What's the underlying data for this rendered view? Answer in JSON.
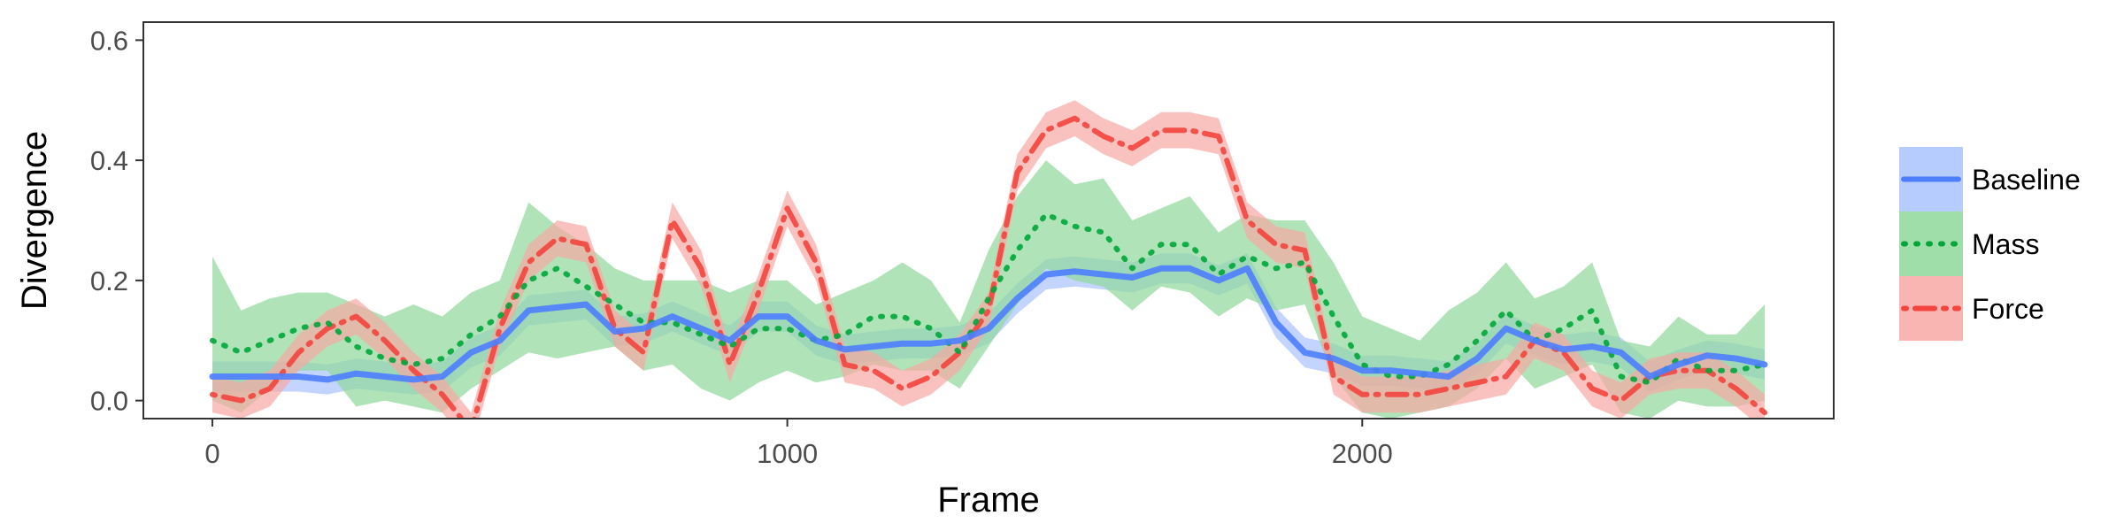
{
  "chart_data": {
    "type": "line",
    "xlabel": "Frame",
    "ylabel": "Divergence",
    "xlim": [
      -120,
      2820
    ],
    "ylim": [
      -0.03,
      0.63
    ],
    "x_ticks": [
      0,
      1000,
      2000
    ],
    "x_tick_labels": [
      "0",
      "1000",
      "2000"
    ],
    "y_ticks": [
      0.0,
      0.2,
      0.4,
      0.6
    ],
    "y_tick_labels": [
      "0.0",
      "0.2",
      "0.4",
      "0.6"
    ],
    "grid": false,
    "legend_position": "right",
    "series": [
      {
        "name": "Baseline",
        "color": "#4c7eff",
        "band_color": "#a9c3ff",
        "line_style": "solid",
        "x": [
          0,
          50,
          100,
          150,
          200,
          250,
          300,
          350,
          400,
          450,
          500,
          550,
          600,
          650,
          700,
          750,
          800,
          850,
          900,
          950,
          1000,
          1050,
          1100,
          1150,
          1200,
          1250,
          1300,
          1350,
          1400,
          1450,
          1500,
          1550,
          1600,
          1650,
          1700,
          1750,
          1800,
          1850,
          1900,
          1950,
          2000,
          2050,
          2100,
          2150,
          2200,
          2250,
          2300,
          2350,
          2400,
          2450,
          2500,
          2550,
          2600,
          2650,
          2700
        ],
        "values": [
          0.04,
          0.04,
          0.04,
          0.04,
          0.035,
          0.045,
          0.04,
          0.035,
          0.04,
          0.08,
          0.1,
          0.15,
          0.155,
          0.16,
          0.115,
          0.12,
          0.14,
          0.12,
          0.1,
          0.14,
          0.14,
          0.1,
          0.085,
          0.09,
          0.095,
          0.095,
          0.1,
          0.12,
          0.17,
          0.21,
          0.215,
          0.21,
          0.205,
          0.22,
          0.22,
          0.2,
          0.22,
          0.13,
          0.08,
          0.07,
          0.05,
          0.05,
          0.045,
          0.04,
          0.07,
          0.12,
          0.1,
          0.085,
          0.09,
          0.08,
          0.04,
          0.06,
          0.075,
          0.07,
          0.06
        ],
        "lower": [
          0.015,
          0.015,
          0.015,
          0.015,
          0.01,
          0.02,
          0.015,
          0.01,
          0.015,
          0.055,
          0.075,
          0.125,
          0.13,
          0.135,
          0.09,
          0.095,
          0.115,
          0.095,
          0.075,
          0.115,
          0.115,
          0.075,
          0.06,
          0.065,
          0.07,
          0.07,
          0.075,
          0.095,
          0.145,
          0.185,
          0.19,
          0.185,
          0.18,
          0.195,
          0.195,
          0.175,
          0.195,
          0.105,
          0.055,
          0.045,
          0.025,
          0.025,
          0.02,
          0.015,
          0.045,
          0.095,
          0.075,
          0.06,
          0.065,
          0.055,
          0.015,
          0.035,
          0.05,
          0.045,
          0.035
        ],
        "upper": [
          0.065,
          0.065,
          0.065,
          0.065,
          0.06,
          0.07,
          0.065,
          0.06,
          0.065,
          0.105,
          0.125,
          0.175,
          0.18,
          0.185,
          0.14,
          0.145,
          0.165,
          0.145,
          0.125,
          0.165,
          0.165,
          0.125,
          0.11,
          0.115,
          0.12,
          0.12,
          0.125,
          0.145,
          0.195,
          0.235,
          0.24,
          0.235,
          0.23,
          0.245,
          0.245,
          0.225,
          0.245,
          0.155,
          0.105,
          0.095,
          0.075,
          0.075,
          0.07,
          0.065,
          0.095,
          0.145,
          0.125,
          0.11,
          0.115,
          0.105,
          0.065,
          0.085,
          0.1,
          0.095,
          0.085
        ]
      },
      {
        "name": "Mass",
        "color": "#00a63a",
        "band_color": "#8fd89a",
        "line_style": "dotted",
        "x": [
          0,
          50,
          100,
          150,
          200,
          250,
          300,
          350,
          400,
          450,
          500,
          550,
          600,
          650,
          700,
          750,
          800,
          850,
          900,
          950,
          1000,
          1050,
          1100,
          1150,
          1200,
          1250,
          1300,
          1350,
          1400,
          1450,
          1500,
          1550,
          1600,
          1650,
          1700,
          1750,
          1800,
          1850,
          1900,
          1950,
          2000,
          2050,
          2100,
          2150,
          2200,
          2250,
          2300,
          2350,
          2400,
          2450,
          2500,
          2550,
          2600,
          2650,
          2700
        ],
        "values": [
          0.1,
          0.08,
          0.1,
          0.12,
          0.13,
          0.09,
          0.07,
          0.06,
          0.07,
          0.11,
          0.14,
          0.2,
          0.22,
          0.19,
          0.16,
          0.13,
          0.13,
          0.11,
          0.09,
          0.12,
          0.12,
          0.1,
          0.11,
          0.14,
          0.14,
          0.12,
          0.08,
          0.17,
          0.25,
          0.31,
          0.29,
          0.28,
          0.22,
          0.26,
          0.26,
          0.21,
          0.24,
          0.22,
          0.23,
          0.14,
          0.06,
          0.04,
          0.04,
          0.06,
          0.1,
          0.15,
          0.1,
          0.12,
          0.15,
          0.04,
          0.03,
          0.07,
          0.05,
          0.05,
          0.06
        ],
        "lower": [
          0.0,
          -0.02,
          0.02,
          0.05,
          0.05,
          -0.01,
          0.0,
          -0.01,
          -0.02,
          0.02,
          0.05,
          0.08,
          0.07,
          0.08,
          0.09,
          0.05,
          0.06,
          0.02,
          0.0,
          0.03,
          0.05,
          0.03,
          0.04,
          0.06,
          0.05,
          0.05,
          0.02,
          0.09,
          0.16,
          0.22,
          0.2,
          0.19,
          0.15,
          0.19,
          0.18,
          0.14,
          0.17,
          0.15,
          0.16,
          0.04,
          -0.02,
          -0.03,
          -0.02,
          -0.01,
          0.02,
          0.07,
          0.02,
          0.04,
          0.06,
          -0.02,
          -0.03,
          0.0,
          -0.01,
          -0.01,
          0.0
        ],
        "upper": [
          0.24,
          0.15,
          0.17,
          0.18,
          0.18,
          0.16,
          0.14,
          0.16,
          0.14,
          0.18,
          0.2,
          0.33,
          0.29,
          0.26,
          0.22,
          0.2,
          0.2,
          0.2,
          0.18,
          0.2,
          0.2,
          0.16,
          0.18,
          0.2,
          0.23,
          0.2,
          0.13,
          0.25,
          0.34,
          0.4,
          0.36,
          0.37,
          0.3,
          0.32,
          0.34,
          0.28,
          0.31,
          0.3,
          0.3,
          0.23,
          0.14,
          0.12,
          0.1,
          0.15,
          0.18,
          0.23,
          0.17,
          0.19,
          0.23,
          0.1,
          0.09,
          0.14,
          0.11,
          0.11,
          0.16
        ]
      },
      {
        "name": "Force",
        "color": "#f2453d",
        "band_color": "#f8a8a4",
        "line_style": "dotdash",
        "x": [
          0,
          50,
          100,
          150,
          200,
          250,
          300,
          350,
          400,
          450,
          500,
          550,
          600,
          650,
          700,
          750,
          800,
          850,
          900,
          950,
          1000,
          1050,
          1100,
          1150,
          1200,
          1250,
          1300,
          1350,
          1400,
          1450,
          1500,
          1550,
          1600,
          1650,
          1700,
          1750,
          1800,
          1850,
          1900,
          1950,
          2000,
          2050,
          2100,
          2150,
          2200,
          2250,
          2300,
          2350,
          2400,
          2450,
          2500,
          2550,
          2600,
          2650,
          2700
        ],
        "values": [
          0.01,
          0.0,
          0.02,
          0.08,
          0.12,
          0.14,
          0.1,
          0.05,
          0.01,
          -0.05,
          0.12,
          0.23,
          0.27,
          0.26,
          0.12,
          0.08,
          0.3,
          0.22,
          0.06,
          0.18,
          0.32,
          0.23,
          0.06,
          0.05,
          0.02,
          0.04,
          0.08,
          0.15,
          0.38,
          0.45,
          0.47,
          0.44,
          0.42,
          0.45,
          0.45,
          0.44,
          0.3,
          0.26,
          0.25,
          0.04,
          0.01,
          0.01,
          0.01,
          0.02,
          0.03,
          0.04,
          0.1,
          0.08,
          0.02,
          0.0,
          0.04,
          0.05,
          0.05,
          0.02,
          -0.02
        ],
        "lower": [
          -0.02,
          -0.03,
          -0.01,
          0.05,
          0.09,
          0.11,
          0.07,
          0.02,
          -0.02,
          -0.08,
          0.09,
          0.2,
          0.24,
          0.23,
          0.09,
          0.05,
          0.27,
          0.19,
          0.03,
          0.15,
          0.29,
          0.2,
          0.03,
          0.02,
          -0.01,
          0.01,
          0.05,
          0.12,
          0.35,
          0.42,
          0.44,
          0.41,
          0.39,
          0.42,
          0.42,
          0.41,
          0.27,
          0.23,
          0.22,
          0.01,
          -0.02,
          -0.02,
          -0.02,
          -0.01,
          0.0,
          0.01,
          0.07,
          0.05,
          -0.01,
          -0.03,
          0.01,
          0.02,
          0.02,
          -0.01,
          -0.05
        ],
        "upper": [
          0.04,
          0.03,
          0.05,
          0.11,
          0.15,
          0.17,
          0.13,
          0.08,
          0.04,
          -0.02,
          0.15,
          0.26,
          0.3,
          0.29,
          0.15,
          0.11,
          0.33,
          0.25,
          0.09,
          0.21,
          0.35,
          0.26,
          0.09,
          0.08,
          0.05,
          0.07,
          0.11,
          0.18,
          0.41,
          0.48,
          0.5,
          0.47,
          0.45,
          0.48,
          0.48,
          0.47,
          0.33,
          0.29,
          0.28,
          0.07,
          0.04,
          0.04,
          0.04,
          0.05,
          0.06,
          0.07,
          0.13,
          0.11,
          0.05,
          0.03,
          0.07,
          0.08,
          0.08,
          0.05,
          0.01
        ]
      }
    ]
  }
}
